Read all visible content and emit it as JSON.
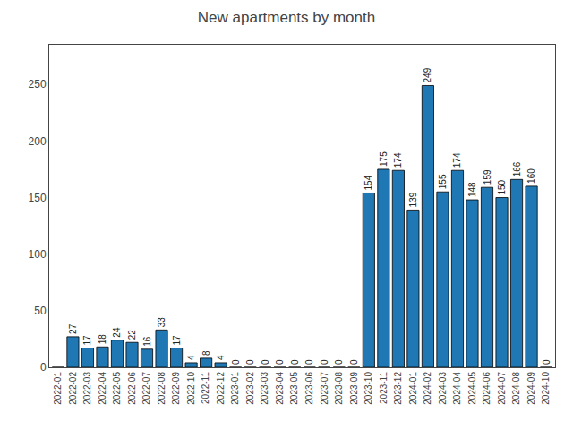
{
  "chart_data": {
    "type": "bar",
    "title": "New apartments by month",
    "categories": [
      "2022-01",
      "2022-02",
      "2022-03",
      "2022-04",
      "2022-05",
      "2022-06",
      "2022-07",
      "2022-08",
      "2022-09",
      "2022-10",
      "2022-11",
      "2022-12",
      "2023-01",
      "2023-02",
      "2023-03",
      "2023-04",
      "2023-05",
      "2023-06",
      "2023-07",
      "2023-08",
      "2023-09",
      "2023-10",
      "2023-11",
      "2023-12",
      "2024-01",
      "2024-02",
      "2024-03",
      "2024-04",
      "2024-05",
      "2024-06",
      "2024-07",
      "2024-08",
      "2024-09",
      "2024-10"
    ],
    "values": [
      0,
      27,
      17,
      18,
      24,
      22,
      16,
      33,
      17,
      4,
      8,
      4,
      0,
      0,
      0,
      0,
      0,
      0,
      0,
      0,
      0,
      154,
      175,
      174,
      139,
      249,
      155,
      174,
      148,
      159,
      150,
      166,
      160,
      0
    ],
    "value_labels": [
      null,
      "27",
      "17",
      "18",
      "24",
      "22",
      "16",
      "33",
      "17",
      "4",
      "8",
      "4",
      "0",
      "0",
      "0",
      "0",
      "0",
      "0",
      "0",
      "0",
      "0",
      "154",
      "175",
      "174",
      "139",
      "249",
      "155",
      "174",
      "148",
      "159",
      "150",
      "166",
      "160",
      "0"
    ],
    "data_labels": true,
    "color": "#1f77b4",
    "ylim": [
      0,
      285
    ],
    "yticks": [
      0,
      50,
      100,
      150,
      200,
      250
    ],
    "grid": false
  }
}
